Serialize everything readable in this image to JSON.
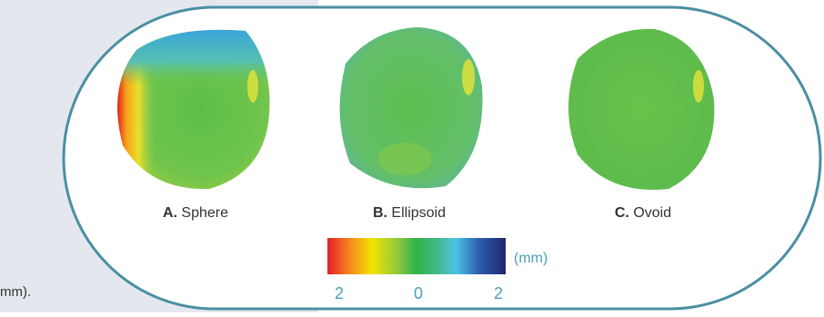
{
  "panels": [
    {
      "letter": "A.",
      "name": "Sphere"
    },
    {
      "letter": "B.",
      "name": "Ellipsoid"
    },
    {
      "letter": "C.",
      "name": "Ovoid"
    }
  ],
  "colorbar": {
    "unit": "(mm)",
    "ticks": [
      2,
      0,
      2
    ]
  },
  "side_text": "mm)."
}
